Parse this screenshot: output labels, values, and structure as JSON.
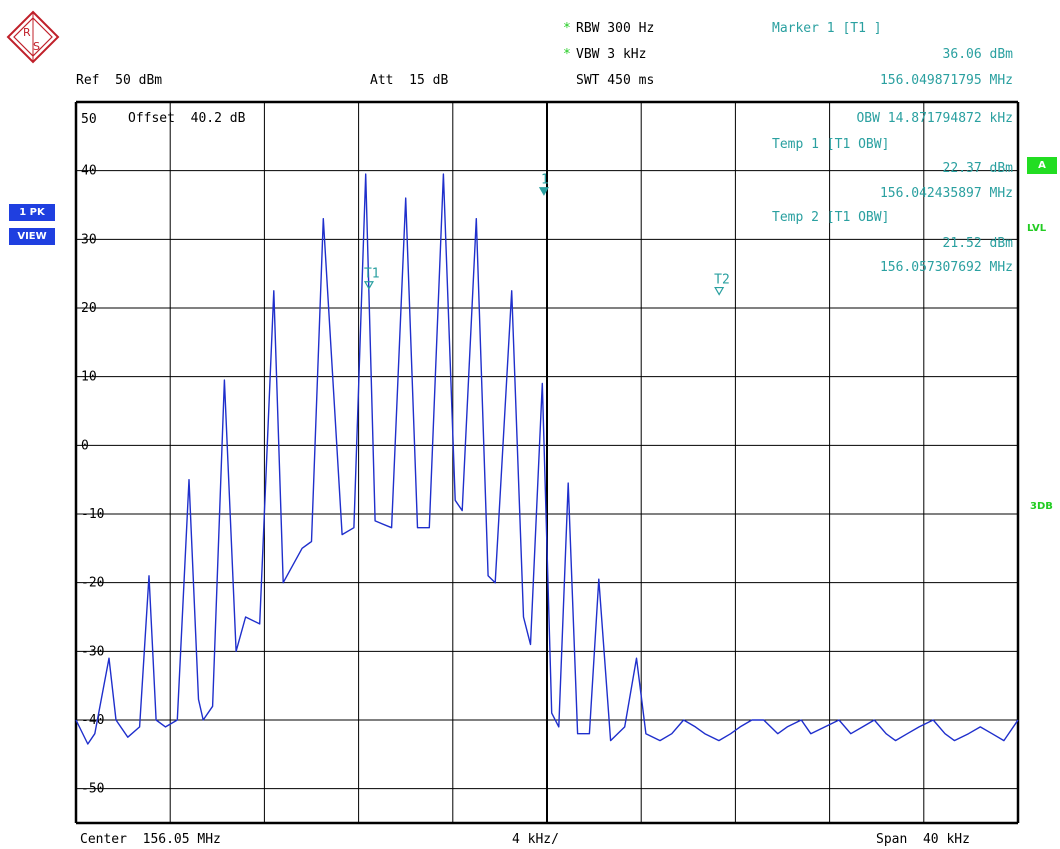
{
  "header": {
    "rbw_star": "*",
    "rbw": "RBW 300 Hz",
    "vbw_star": "*",
    "vbw": "VBW 3 kHz",
    "swt": "SWT 450 ms",
    "ref": "Ref  50 dBm",
    "att": "Att  15 dB",
    "offset_line": "Offset  40.2 dB"
  },
  "marker_panel": {
    "title": "Marker 1 [T1 ]",
    "level": "36.06 dBm",
    "freq": "156.049871795 MHz",
    "obw": "OBW 14.871794872 kHz",
    "temp1_title": "Temp 1 [T1 OBW]",
    "temp1_level": "22.37 dBm",
    "temp1_freq": "156.042435897 MHz",
    "temp2_title": "Temp 2 [T1 OBW]",
    "temp2_level": "21.52 dBm",
    "temp2_freq": "156.057307692 MHz"
  },
  "side": {
    "trace_mode": "1 PK",
    "trace_view": "VIEW",
    "badge_a": "A",
    "lvl": "LVL",
    "db3": "3DB"
  },
  "footer": {
    "center": "Center  156.05 MHz",
    "div": "4 kHz/",
    "span": "Span  40 kHz"
  },
  "colors": {
    "trace": "#1f2fcc",
    "marker": "#2aa0a0",
    "badge_blue": "#1f3fe0",
    "badge_green": "#22dd22"
  },
  "chart_data": {
    "type": "line",
    "xlabel": "",
    "ylabel": "",
    "xlim": [
      -20,
      20
    ],
    "ylim": [
      -55,
      50
    ],
    "y_ticks": [
      50,
      40,
      30,
      20,
      10,
      0,
      -10,
      -20,
      -30,
      -40,
      -50
    ],
    "y_tick_labels": [
      "50",
      "40",
      "30",
      "20",
      "10",
      "0",
      "-10",
      "-20",
      "-30",
      "-40",
      "-50"
    ],
    "grid": true,
    "series": [
      {
        "x": [
          -20,
          -19.5,
          -19.2,
          -18.6,
          -18.3,
          -17.8,
          -17.3,
          -16.9,
          -16.6,
          -16.2,
          -15.7,
          -15.2,
          -14.8,
          -14.6,
          -14.2,
          -13.7,
          -13.2,
          -12.8,
          -12.2,
          -11.6,
          -11.2,
          -10.4,
          -10.0,
          -9.5,
          -8.7,
          -8.2,
          -7.7,
          -7.3,
          -6.6,
          -6.0,
          -5.5,
          -5.0,
          -4.4,
          -3.9,
          -3.6,
          -3.0,
          -2.5,
          -2.2,
          -1.5,
          -1.0,
          -0.7,
          -0.2,
          0.2,
          0.5,
          0.9,
          1.3,
          1.8,
          2.2,
          2.7,
          3.3,
          3.8,
          4.2,
          4.8,
          5.3,
          5.8,
          6.3,
          6.7,
          7.3,
          7.8,
          8.2,
          8.7,
          9.2,
          9.8,
          10.2,
          10.8,
          11.2,
          11.8,
          12.4,
          12.9,
          13.4,
          13.9,
          14.4,
          14.8,
          15.3,
          15.8,
          16.4,
          16.9,
          17.3,
          17.9,
          18.4,
          18.9,
          19.4,
          20
        ],
        "y": [
          -40,
          -43.5,
          -42,
          -31,
          -40,
          -42.5,
          -41,
          -19,
          -40,
          -41,
          -40,
          -5,
          -37,
          -40,
          -38,
          9.5,
          -30,
          -25,
          -26,
          22.5,
          -20,
          -15,
          -14,
          33,
          -13,
          -12,
          39.5,
          -11,
          -12,
          36,
          -12,
          -12,
          39.5,
          -8,
          -9.5,
          33,
          -19,
          -20,
          22.5,
          -25,
          -29,
          9,
          -39,
          -41,
          -5.5,
          -42,
          -42,
          -19.5,
          -43,
          -41,
          -31,
          -42,
          -43,
          -42,
          -40,
          -41,
          -42,
          -43,
          -42,
          -41,
          -40,
          -40,
          -42,
          -41,
          -40,
          -42,
          -41,
          -40,
          -42,
          -41,
          -40,
          -42,
          -43,
          -42,
          -41,
          -40,
          -42,
          -43,
          -42,
          -41,
          -42,
          -43,
          -40
        ],
        "name": ""
      }
    ],
    "markers": [
      {
        "label": "1",
        "x": -0.13,
        "y": 36.06
      },
      {
        "label": "T1",
        "x": -7.56,
        "y": 22.37
      },
      {
        "label": "T2",
        "x": 7.31,
        "y": 21.52
      }
    ]
  }
}
